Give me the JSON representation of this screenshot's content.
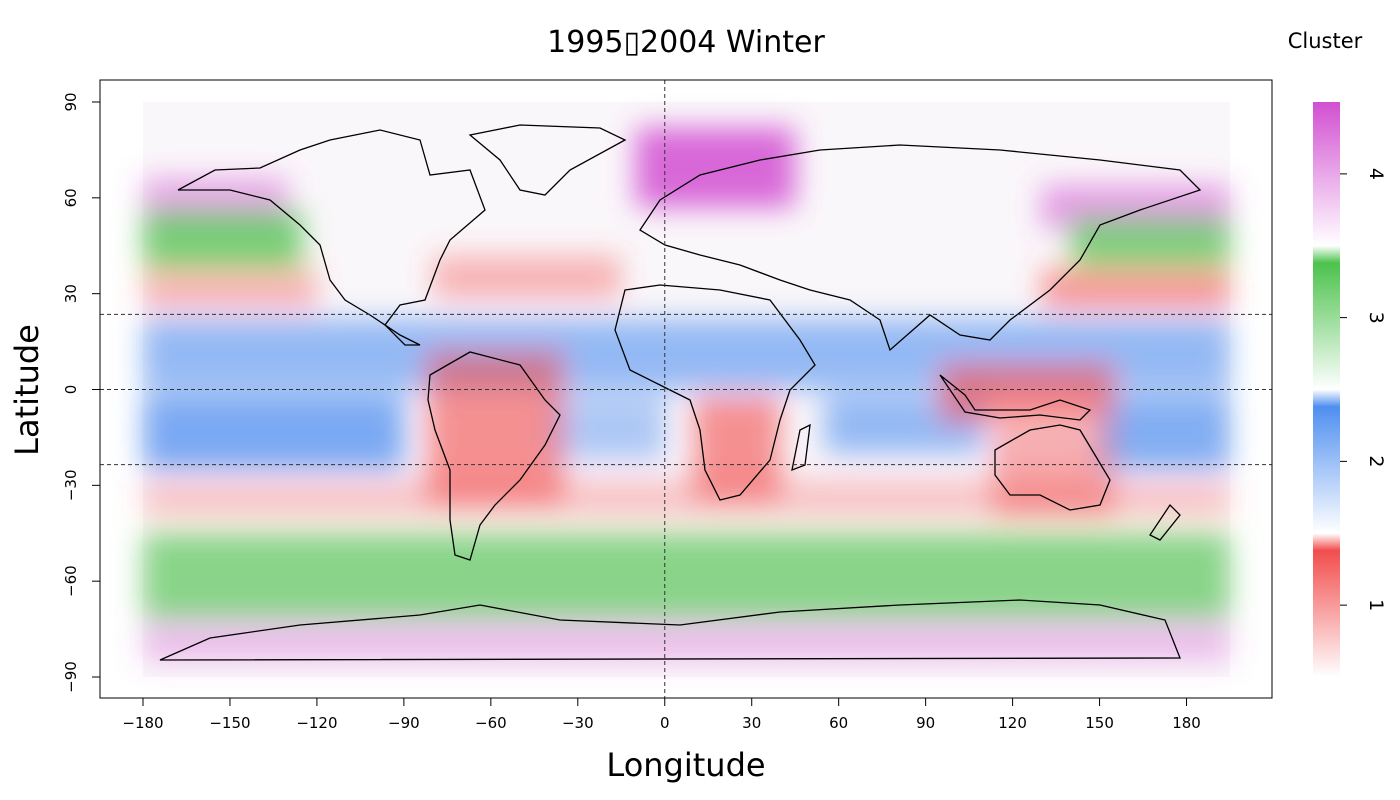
{
  "chart_data": {
    "type": "heatmap",
    "title": "1995▯2004 Winter",
    "xlabel": "Longitude",
    "ylabel": "Latitude",
    "xlim": [
      -180,
      195
    ],
    "ylim": [
      -90,
      90
    ],
    "x_ticks": [
      -180,
      -150,
      -120,
      -90,
      -60,
      -30,
      0,
      30,
      60,
      90,
      120,
      150,
      180
    ],
    "y_ticks": [
      -90,
      -60,
      -30,
      0,
      30,
      60,
      90
    ],
    "reference_lines": {
      "horizontal": [
        23.5,
        0,
        -23.5
      ],
      "vertical": [
        0
      ],
      "style": "dashed"
    },
    "grid": false,
    "legend": {
      "title": "Cluster",
      "placement": "right",
      "type": "colorbar",
      "ticks": [
        "1",
        "2",
        "3",
        "4"
      ],
      "bins": [
        {
          "cluster": "1",
          "color": "#f24d4d"
        },
        {
          "cluster": "2",
          "color": "#4f8ff0"
        },
        {
          "cluster": "3",
          "color": "#4cc24c"
        },
        {
          "cluster": "4",
          "color": "#d24fd2"
        }
      ]
    },
    "zones": [
      {
        "cluster": "4",
        "lon": [
          -10,
          45
        ],
        "lat": [
          57,
          82
        ],
        "strength": 0.85
      },
      {
        "cluster": "4",
        "lon": [
          -180,
          -130
        ],
        "lat": [
          52,
          66
        ],
        "strength": 0.5
      },
      {
        "cluster": "4",
        "lon": [
          130,
          195
        ],
        "lat": [
          50,
          64
        ],
        "strength": 0.55
      },
      {
        "cluster": "3",
        "lon": [
          -180,
          -125
        ],
        "lat": [
          38,
          56
        ],
        "strength": 0.75
      },
      {
        "cluster": "3",
        "lon": [
          140,
          195
        ],
        "lat": [
          38,
          54
        ],
        "strength": 0.7
      },
      {
        "cluster": "1",
        "lon": [
          -180,
          -120
        ],
        "lat": [
          25,
          38
        ],
        "strength": 0.4
      },
      {
        "cluster": "1",
        "lon": [
          -80,
          -15
        ],
        "lat": [
          28,
          42
        ],
        "strength": 0.4
      },
      {
        "cluster": "1",
        "lon": [
          130,
          195
        ],
        "lat": [
          25,
          38
        ],
        "strength": 0.55
      },
      {
        "cluster": "2",
        "lon": [
          -180,
          195
        ],
        "lat": [
          0,
          22
        ],
        "strength": 0.6
      },
      {
        "cluster": "2",
        "lon": [
          -180,
          -90
        ],
        "lat": [
          -25,
          -2
        ],
        "strength": 0.75
      },
      {
        "cluster": "2",
        "lon": [
          -40,
          0
        ],
        "lat": [
          -22,
          -2
        ],
        "strength": 0.45
      },
      {
        "cluster": "2",
        "lon": [
          55,
          110
        ],
        "lat": [
          -20,
          -2
        ],
        "strength": 0.6
      },
      {
        "cluster": "2",
        "lon": [
          150,
          195
        ],
        "lat": [
          -25,
          -2
        ],
        "strength": 0.7
      },
      {
        "cluster": "1",
        "lon": [
          -180,
          195
        ],
        "lat": [
          -40,
          -28
        ],
        "strength": 0.3
      },
      {
        "cluster": "3",
        "lon": [
          -180,
          195
        ],
        "lat": [
          -72,
          -45
        ],
        "strength": 0.65
      },
      {
        "cluster": "4",
        "lon": [
          -180,
          195
        ],
        "lat": [
          -85,
          -72
        ],
        "strength": 0.35
      },
      {
        "cluster": "1",
        "lon": [
          -82,
          -35
        ],
        "lat": [
          -35,
          12
        ],
        "strength": 0.6
      },
      {
        "cluster": "1",
        "lon": [
          10,
          40
        ],
        "lat": [
          -34,
          -2
        ],
        "strength": 0.6
      },
      {
        "cluster": "1",
        "lon": [
          113,
          155
        ],
        "lat": [
          -40,
          -12
        ],
        "strength": 0.45
      },
      {
        "cluster": "1",
        "lon": [
          95,
          155
        ],
        "lat": [
          -10,
          8
        ],
        "strength": 0.65
      }
    ]
  }
}
